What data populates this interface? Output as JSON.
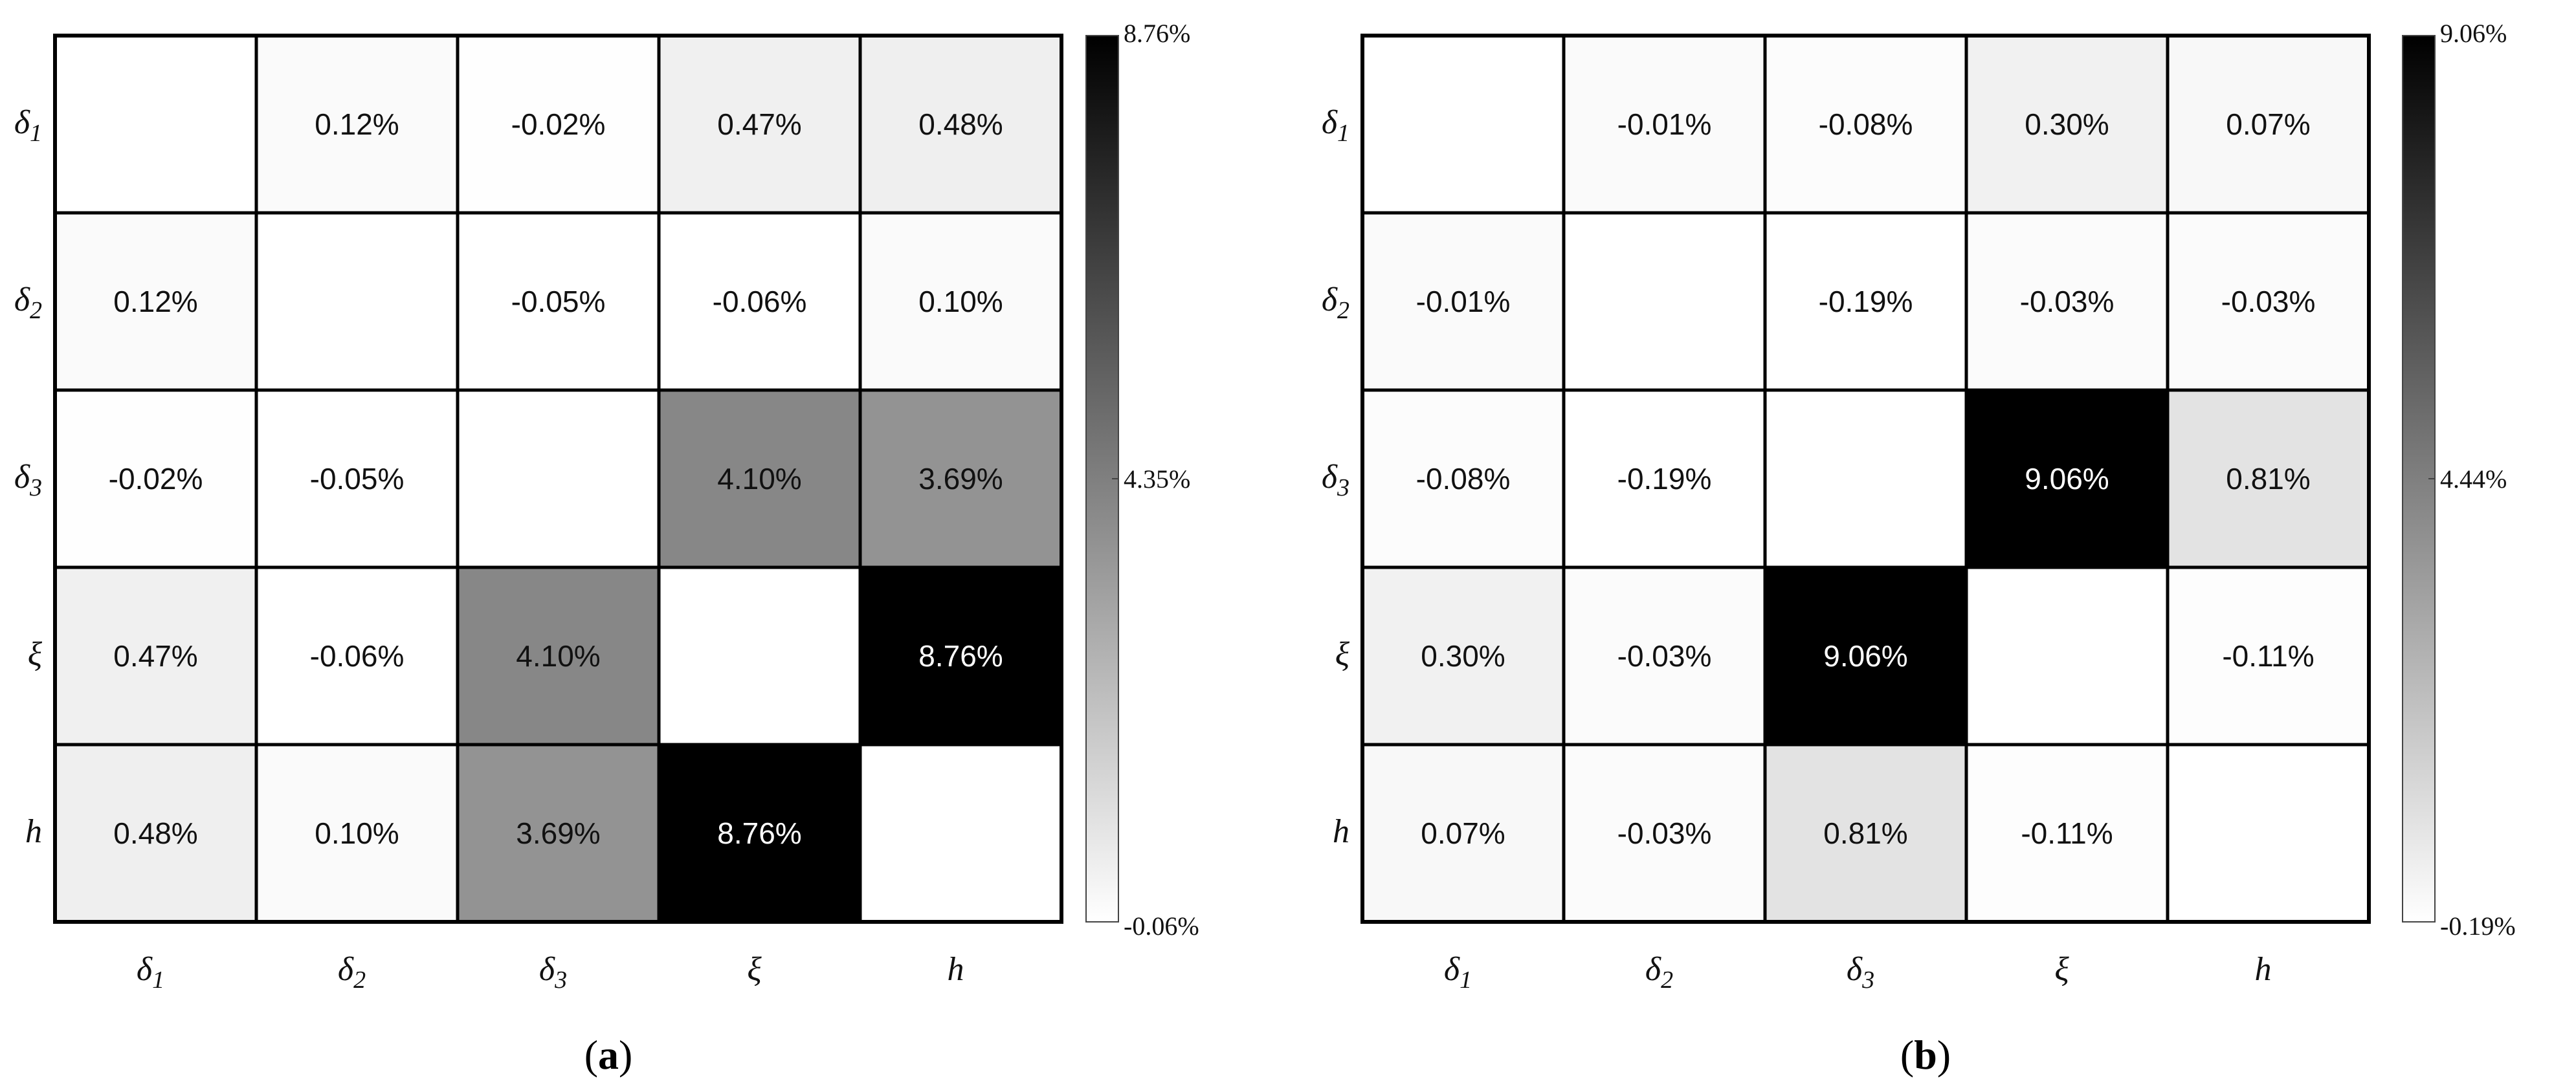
{
  "chart_data": [
    {
      "type": "heatmap",
      "panel_label": {
        "open": "(",
        "letter": "a",
        "close": ")"
      },
      "x_labels": [
        "δ1",
        "δ2",
        "δ3",
        "ξ",
        "h"
      ],
      "y_labels": [
        "δ1",
        "δ2",
        "δ3",
        "ξ",
        "h"
      ],
      "labels_display": [
        {
          "base": "δ",
          "sub": "1"
        },
        {
          "base": "δ",
          "sub": "2"
        },
        {
          "base": "δ",
          "sub": "3"
        },
        {
          "base": "ξ",
          "sub": ""
        },
        {
          "base": "h",
          "sub": ""
        }
      ],
      "values": [
        [
          null,
          0.12,
          -0.02,
          0.47,
          0.48
        ],
        [
          0.12,
          null,
          -0.05,
          -0.06,
          0.1
        ],
        [
          -0.02,
          -0.05,
          null,
          4.1,
          3.69
        ],
        [
          0.47,
          -0.06,
          4.1,
          null,
          8.76
        ],
        [
          0.48,
          0.1,
          3.69,
          8.76,
          null
        ]
      ],
      "cell_text": [
        [
          "",
          "0.12%",
          "-0.02%",
          "0.47%",
          "0.48%"
        ],
        [
          "0.12%",
          "",
          "-0.05%",
          "-0.06%",
          "0.10%"
        ],
        [
          "-0.02%",
          "-0.05%",
          "",
          "4.10%",
          "3.69%"
        ],
        [
          "0.47%",
          "-0.06%",
          "4.10%",
          "",
          "8.76%"
        ],
        [
          "0.48%",
          "0.10%",
          "3.69%",
          "8.76%",
          ""
        ]
      ],
      "colorbar": {
        "min": -0.06,
        "max": 8.76,
        "tick_labels": [
          "8.76%",
          "4.35%",
          "-0.06%"
        ],
        "colormap": "white-to-black"
      }
    },
    {
      "type": "heatmap",
      "panel_label": {
        "open": "(",
        "letter": "b",
        "close": ")"
      },
      "x_labels": [
        "δ1",
        "δ2",
        "δ3",
        "ξ",
        "h"
      ],
      "y_labels": [
        "δ1",
        "δ2",
        "δ3",
        "ξ",
        "h"
      ],
      "labels_display": [
        {
          "base": "δ",
          "sub": "1"
        },
        {
          "base": "δ",
          "sub": "2"
        },
        {
          "base": "δ",
          "sub": "3"
        },
        {
          "base": "ξ",
          "sub": ""
        },
        {
          "base": "h",
          "sub": ""
        }
      ],
      "values": [
        [
          null,
          -0.01,
          -0.08,
          0.3,
          0.07
        ],
        [
          -0.01,
          null,
          -0.19,
          -0.03,
          -0.03
        ],
        [
          -0.08,
          -0.19,
          null,
          9.06,
          0.81
        ],
        [
          0.3,
          -0.03,
          9.06,
          null,
          -0.11
        ],
        [
          0.07,
          -0.03,
          0.81,
          -0.11,
          null
        ]
      ],
      "cell_text": [
        [
          "",
          "-0.01%",
          "-0.08%",
          "0.30%",
          "0.07%"
        ],
        [
          "-0.01%",
          "",
          "-0.19%",
          "-0.03%",
          "-0.03%"
        ],
        [
          "-0.08%",
          "-0.19%",
          "",
          "9.06%",
          "0.81%"
        ],
        [
          "0.30%",
          "-0.03%",
          "9.06%",
          "",
          "-0.11%"
        ],
        [
          "0.07%",
          "-0.03%",
          "0.81%",
          "-0.11%",
          ""
        ]
      ],
      "colorbar": {
        "min": -0.19,
        "max": 9.06,
        "tick_labels": [
          "9.06%",
          "4.44%",
          "-0.19%"
        ],
        "colormap": "white-to-black"
      }
    }
  ]
}
